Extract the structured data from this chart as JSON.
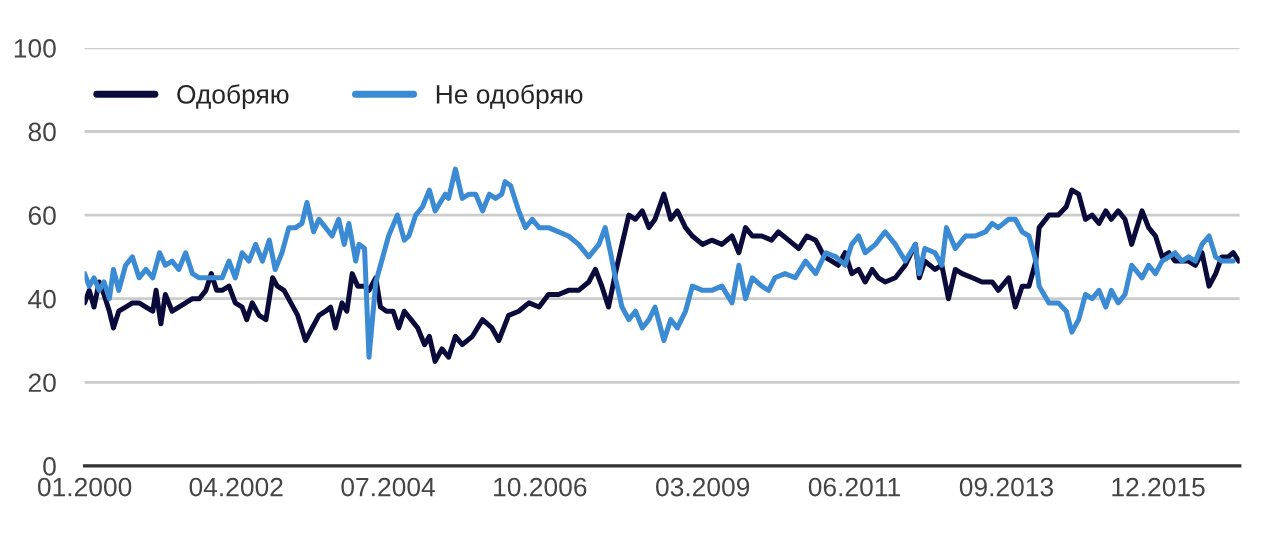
{
  "chart_data": {
    "type": "line",
    "xlim": [
      "2000-01",
      "2017-02-15"
    ],
    "xticks": [
      {
        "value": "2000-01",
        "label": "01.2000"
      },
      {
        "value": "2002-04",
        "label": "04.2002"
      },
      {
        "value": "2004-07",
        "label": "07.2004"
      },
      {
        "value": "2006-10",
        "label": "10.2006"
      },
      {
        "value": "2009-03",
        "label": "03.2009"
      },
      {
        "value": "2011-06",
        "label": "06.2011"
      },
      {
        "value": "2013-09",
        "label": "09.2013"
      },
      {
        "value": "2015-12",
        "label": "12.2015"
      }
    ],
    "ylim": [
      0,
      100
    ],
    "yticks": [
      0,
      20,
      40,
      60,
      80,
      100
    ],
    "grid": "y",
    "legend": "top left",
    "marker": "none",
    "line_style": "solid",
    "series": [
      {
        "name": "Одобряю",
        "color": "#0b0b3b",
        "x": [
          "2000-01-01",
          "2000-01-26",
          "2000-02-21",
          "2000-03-20",
          "2000-04-15",
          "2000-05-14",
          "2000-06-05",
          "2000-07-04",
          "2000-08-10",
          "2000-09-16",
          "2000-10-22",
          "2000-11-28",
          "2001-01-04",
          "2001-01-22",
          "2001-02-17",
          "2001-03-13",
          "2001-04-19",
          "2001-05-25",
          "2001-07-01",
          "2001-08-07",
          "2001-09-13",
          "2001-10-19",
          "2001-11-17",
          "2001-12-16",
          "2002-01-15",
          "2002-02-21",
          "2002-03-27",
          "2002-05-03",
          "2002-05-28",
          "2002-06-27",
          "2002-08-03",
          "2002-09-09",
          "2002-10-15",
          "2002-11-10",
          "2002-12-16",
          "2003-01-22",
          "2003-02-28",
          "2003-04-11",
          "2003-05-17",
          "2003-06-23",
          "2003-07-29",
          "2003-08-25",
          "2003-09-20",
          "2003-10-26",
          "2003-11-21",
          "2003-12-20",
          "2004-01-19",
          "2004-02-25",
          "2004-03-20",
          "2004-04-26",
          "2004-05-21",
          "2004-06-23",
          "2004-07-29",
          "2004-08-28",
          "2004-09-27",
          "2004-11-03",
          "2004-12-09",
          "2005-01-15",
          "2005-02-10",
          "2005-03-13",
          "2005-04-19",
          "2005-05-25",
          "2005-07-01",
          "2005-08-07",
          "2005-10-01",
          "2005-11-25",
          "2006-01-15",
          "2006-02-21",
          "2006-04-15",
          "2006-06-09",
          "2006-08-03",
          "2006-09-27",
          "2006-11-17",
          "2007-01-11",
          "2007-03-05",
          "2007-04-29",
          "2007-06-23",
          "2007-07-29",
          "2007-09-02",
          "2007-10-08",
          "2007-11-14",
          "2007-12-20",
          "2008-01-26",
          "2008-03-02",
          "2008-04-08",
          "2008-05-14",
          "2008-06-16",
          "2008-08-03",
          "2008-09-09",
          "2008-10-15",
          "2008-11-28",
          "2009-01-04",
          "2009-02-28",
          "2009-04-19",
          "2009-06-13",
          "2009-08-07",
          "2009-09-13",
          "2009-10-19",
          "2009-11-25",
          "2010-01-15",
          "2010-03-09",
          "2010-04-15",
          "2010-06-09",
          "2010-08-03",
          "2010-09-16",
          "2010-11-03",
          "2010-12-20",
          "2011-01-29",
          "2011-03-05",
          "2011-04-11",
          "2011-05-17",
          "2011-06-23",
          "2011-07-29",
          "2011-09-05",
          "2011-10-08",
          "2011-11-14",
          "2012-01-08",
          "2012-03-02",
          "2012-04-26",
          "2012-05-17",
          "2012-06-16",
          "2012-08-10",
          "2012-09-16",
          "2012-10-22",
          "2012-11-28",
          "2013-01-04",
          "2013-02-28",
          "2013-04-22",
          "2013-06-16",
          "2013-07-19",
          "2013-09-13",
          "2013-10-19",
          "2013-11-25",
          "2014-01-01",
          "2014-02-07",
          "2014-02-25",
          "2014-04-19",
          "2014-06-09",
          "2014-07-22",
          "2014-08-21",
          "2014-09-27",
          "2014-11-03",
          "2014-12-09",
          "2015-01-15",
          "2015-02-21",
          "2015-03-23",
          "2015-04-29",
          "2015-06-05",
          "2015-07-11",
          "2015-09-05",
          "2015-10-11",
          "2015-11-17",
          "2015-12-23",
          "2016-01-29",
          "2016-03-02",
          "2016-04-08",
          "2016-05-14",
          "2016-06-20",
          "2016-07-26",
          "2016-09-02",
          "2016-10-08",
          "2016-11-10",
          "2016-12-16",
          "2017-01-11",
          "2017-02-10"
        ],
        "values": [
          39,
          42,
          38,
          44,
          41,
          37,
          33,
          37,
          38,
          39,
          39,
          38,
          37,
          42,
          34,
          41,
          37,
          38,
          39,
          40,
          40,
          42,
          46,
          42,
          42,
          43,
          39,
          38,
          35,
          39,
          36,
          35,
          45,
          43,
          42,
          39,
          36,
          30,
          33,
          36,
          37,
          38,
          33,
          39,
          37,
          46,
          43,
          43,
          42,
          45,
          38,
          37,
          37,
          33,
          37,
          35,
          33,
          29,
          31,
          25,
          28,
          26,
          31,
          29,
          31,
          35,
          33,
          30,
          36,
          37,
          39,
          38,
          41,
          41,
          42,
          42,
          44,
          47,
          43,
          38,
          46,
          53,
          60,
          59,
          61,
          57,
          59,
          65,
          59,
          61,
          57,
          55,
          53,
          54,
          53,
          55,
          51,
          57,
          55,
          55,
          54,
          56,
          54,
          52,
          55,
          54,
          50,
          49,
          48,
          51,
          46,
          47,
          44,
          47,
          45,
          44,
          45,
          48,
          53,
          45,
          49,
          47,
          48,
          40,
          47,
          46,
          45,
          44,
          44,
          42,
          45,
          38,
          43,
          43,
          49,
          57,
          60,
          60,
          62,
          66,
          65,
          59,
          60,
          58,
          61,
          59,
          61,
          59,
          53,
          61,
          57,
          55,
          50,
          51,
          49,
          49,
          49,
          48,
          51,
          43,
          46,
          50,
          50,
          51,
          49
        ]
      },
      {
        "name": "Не одобряю",
        "color": "#3a8ad4",
        "x": [
          "2000-01-01",
          "2000-01-26",
          "2000-02-21",
          "2000-03-20",
          "2000-04-15",
          "2000-05-14",
          "2000-06-05",
          "2000-07-04",
          "2000-08-10",
          "2000-09-16",
          "2000-10-22",
          "2000-11-28",
          "2001-01-04",
          "2001-02-10",
          "2001-03-13",
          "2001-04-19",
          "2001-05-25",
          "2001-07-01",
          "2001-08-07",
          "2001-09-13",
          "2001-10-19",
          "2001-12-13",
          "2002-01-15",
          "2002-02-21",
          "2002-03-27",
          "2002-05-03",
          "2002-06-09",
          "2002-07-15",
          "2002-08-21",
          "2002-09-27",
          "2002-10-29",
          "2002-12-05",
          "2003-01-11",
          "2003-02-17",
          "2003-03-23",
          "2003-04-19",
          "2003-05-25",
          "2003-06-23",
          "2003-07-29",
          "2003-09-02",
          "2003-10-08",
          "2003-11-07",
          "2003-12-02",
          "2004-01-08",
          "2004-01-26",
          "2004-02-25",
          "2004-03-20",
          "2004-04-26",
          "2004-06-09",
          "2004-07-04",
          "2004-08-21",
          "2004-09-27",
          "2004-10-22",
          "2004-11-28",
          "2005-01-04",
          "2005-02-10",
          "2005-03-13",
          "2005-05-07",
          "2005-05-25",
          "2005-07-01",
          "2005-08-07",
          "2005-09-13",
          "2005-10-19",
          "2005-11-25",
          "2006-01-01",
          "2006-02-03",
          "2006-03-09",
          "2006-03-27",
          "2006-04-26",
          "2006-06-09",
          "2006-07-15",
          "2006-08-21",
          "2006-09-27",
          "2006-11-17",
          "2007-01-11",
          "2007-03-05",
          "2007-04-29",
          "2007-06-23",
          "2007-08-17",
          "2007-09-20",
          "2007-10-19",
          "2007-11-14",
          "2007-12-20",
          "2008-01-26",
          "2008-03-02",
          "2008-04-08",
          "2008-05-14",
          "2008-06-16",
          "2008-08-03",
          "2008-09-09",
          "2008-10-15",
          "2008-11-28",
          "2009-01-04",
          "2009-02-28",
          "2009-04-19",
          "2009-06-13",
          "2009-08-07",
          "2009-09-13",
          "2009-10-19",
          "2009-11-25",
          "2010-01-15",
          "2010-02-21",
          "2010-03-27",
          "2010-05-21",
          "2010-07-15",
          "2010-09-09",
          "2010-11-03",
          "2010-12-27",
          "2011-02-21",
          "2011-04-11",
          "2011-05-17",
          "2011-06-23",
          "2011-07-29",
          "2011-09-23",
          "2011-11-14",
          "2012-01-08",
          "2012-03-02",
          "2012-04-26",
          "2012-05-17",
          "2012-06-16",
          "2012-08-10",
          "2012-09-16",
          "2012-10-11",
          "2012-11-28",
          "2013-01-22",
          "2013-03-16",
          "2013-05-10",
          "2013-06-16",
          "2013-07-19",
          "2013-09-13",
          "2013-10-19",
          "2013-11-25",
          "2014-01-01",
          "2014-02-07",
          "2014-02-25",
          "2014-04-19",
          "2014-06-09",
          "2014-07-22",
          "2014-08-21",
          "2014-09-27",
          "2014-11-03",
          "2014-12-09",
          "2015-01-15",
          "2015-02-21",
          "2015-03-23",
          "2015-04-29",
          "2015-06-05",
          "2015-07-11",
          "2015-09-05",
          "2015-10-11",
          "2015-11-17",
          "2015-12-23",
          "2016-01-29",
          "2016-03-02",
          "2016-04-08",
          "2016-05-14",
          "2016-06-20",
          "2016-07-26",
          "2016-09-02",
          "2016-10-08",
          "2016-11-10",
          "2016-12-16",
          "2017-01-11"
        ],
        "values": [
          46,
          43,
          45,
          42,
          44,
          40,
          47,
          42,
          48,
          50,
          45,
          47,
          45,
          51,
          48,
          49,
          47,
          51,
          46,
          45,
          45,
          45,
          45,
          49,
          45,
          51,
          49,
          53,
          49,
          54,
          47,
          51,
          57,
          57,
          58,
          63,
          56,
          59,
          57,
          55,
          59,
          53,
          58,
          49,
          53,
          52,
          26,
          44,
          51,
          55,
          60,
          54,
          55,
          60,
          62,
          66,
          61,
          65,
          64,
          71,
          64,
          65,
          65,
          61,
          65,
          64,
          65,
          68,
          67,
          61,
          57,
          59,
          57,
          57,
          56,
          55,
          53,
          50,
          53,
          57,
          51,
          45,
          38,
          35,
          37,
          33,
          35,
          38,
          30,
          35,
          33,
          37,
          43,
          42,
          42,
          43,
          39,
          48,
          40,
          45,
          43,
          42,
          45,
          46,
          45,
          49,
          46,
          51,
          50,
          48,
          53,
          55,
          51,
          53,
          56,
          53,
          49,
          53,
          46,
          52,
          51,
          48,
          57,
          52,
          55,
          55,
          56,
          58,
          57,
          59,
          59,
          56,
          55,
          49,
          43,
          39,
          39,
          37,
          32,
          35,
          41,
          40,
          42,
          38,
          42,
          39,
          41,
          48,
          45,
          48,
          46,
          49,
          50,
          51,
          49,
          50,
          49,
          53,
          55,
          50,
          49,
          49,
          49
        ]
      }
    ]
  }
}
